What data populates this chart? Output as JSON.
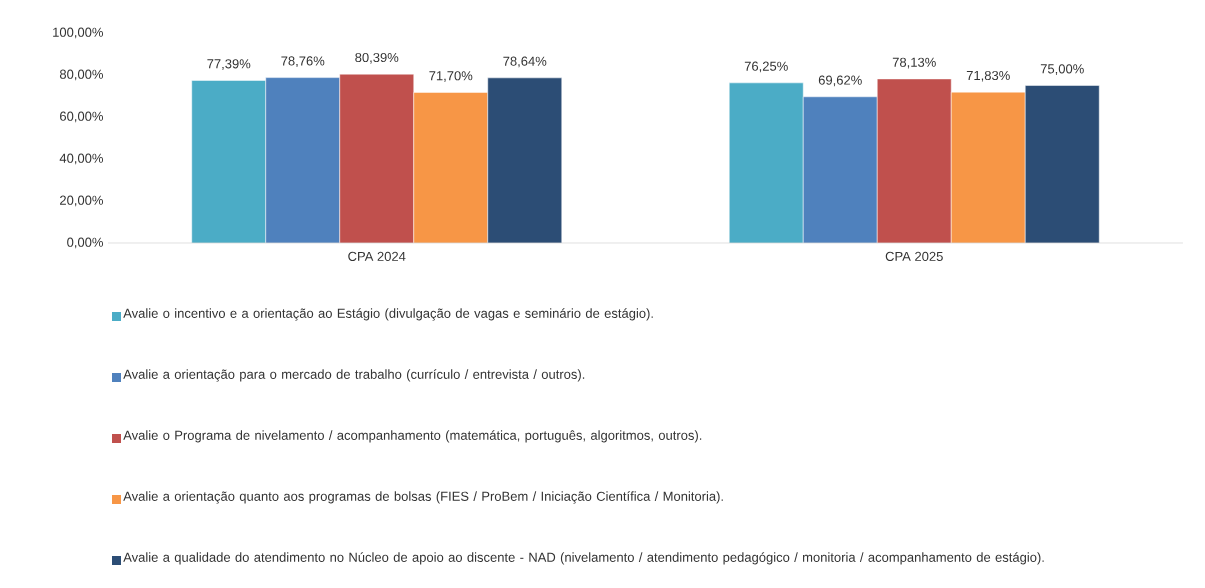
{
  "chart_data": {
    "type": "bar",
    "categories": [
      "CPA 2024",
      "CPA 2025"
    ],
    "series": [
      {
        "name": "Avalie o incentivo e a orientação ao Estágio (divulgação de vagas e seminário de estágio).",
        "color": "#4bacc6",
        "values": [
          77.39,
          76.25
        ],
        "value_labels": [
          "77,39%",
          "76,25%"
        ]
      },
      {
        "name": "Avalie a orientação para o mercado de trabalho (currículo / entrevista / outros).",
        "color": "#4f81bd",
        "values": [
          78.76,
          69.62
        ],
        "value_labels": [
          "78,76%",
          "69,62%"
        ]
      },
      {
        "name": "Avalie o Programa de nivelamento / acompanhamento (matemática, português, algoritmos, outros).",
        "color": "#c0504d",
        "values": [
          80.39,
          78.13
        ],
        "value_labels": [
          "80,39%",
          "78,13%"
        ]
      },
      {
        "name": "Avalie a orientação quanto aos programas de bolsas (FIES / ProBem / Iniciação Científica / Monitoria).",
        "color": "#f79646",
        "values": [
          71.7,
          71.83
        ],
        "value_labels": [
          "71,70%",
          "71,83%"
        ]
      },
      {
        "name": "Avalie a qualidade do atendimento no Núcleo de apoio ao discente - NAD (nivelamento / atendimento pedagógico / monitoria / acompanhamento de estágio).",
        "color": "#2c4d75",
        "values": [
          78.64,
          75.0
        ],
        "value_labels": [
          "78,64%",
          "75,00%"
        ]
      }
    ],
    "ylim": [
      0,
      100
    ],
    "yticks": [
      {
        "value": 0,
        "label": "0,00%"
      },
      {
        "value": 20,
        "label": "20,00%"
      },
      {
        "value": 40,
        "label": "40,00%"
      },
      {
        "value": 60,
        "label": "60,00%"
      },
      {
        "value": 80,
        "label": "80,00%"
      },
      {
        "value": 100,
        "label": "100,00%"
      }
    ],
    "legend": "bottom"
  }
}
